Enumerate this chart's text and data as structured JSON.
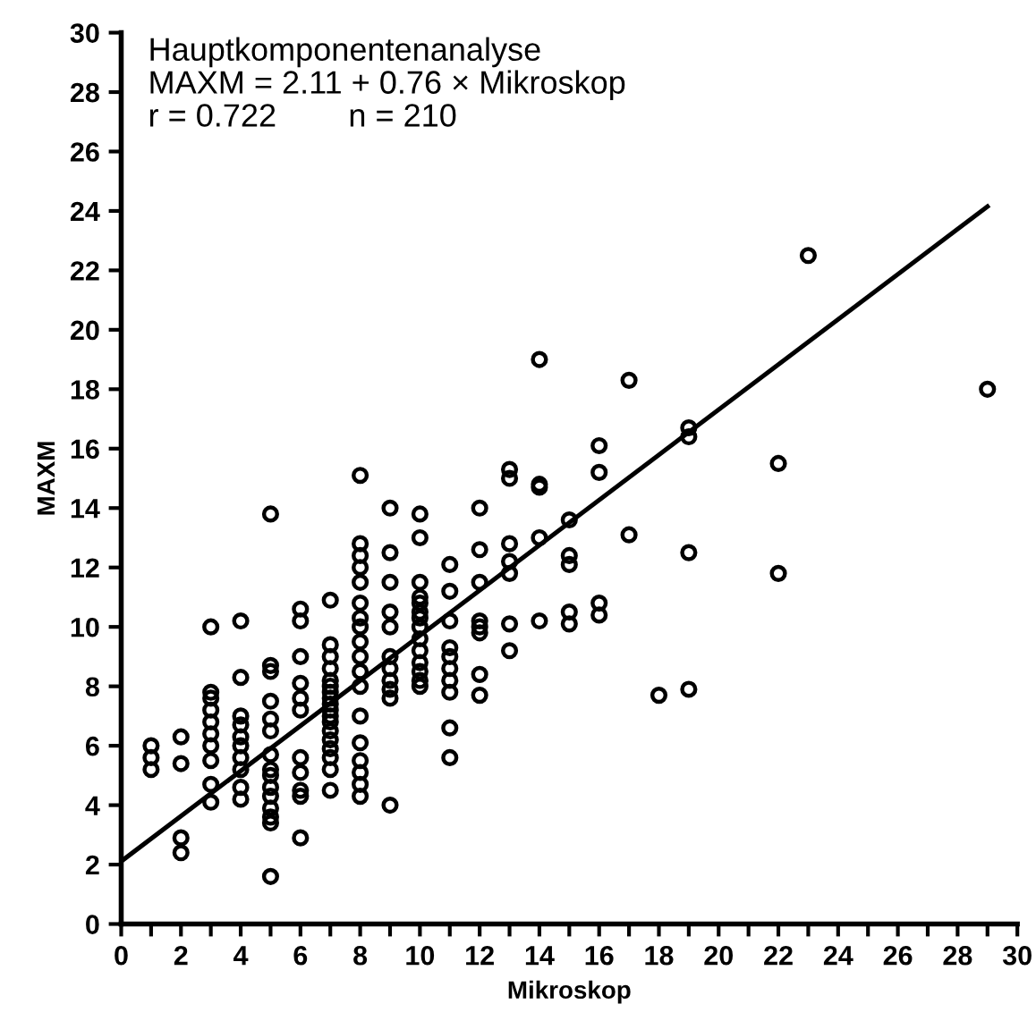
{
  "chart_data": {
    "type": "scatter",
    "xlabel": "Mikroskop",
    "ylabel": "MAXM",
    "annotations": [
      "Hauptkomponentenanalyse",
      "MAXM = 2.11 + 0.76 × Mikroskop",
      "r = 0.722        n = 210"
    ],
    "xlim": [
      0,
      30
    ],
    "ylim": [
      0,
      30
    ],
    "xticks": [
      0,
      {
        "value": 1,
        "label": null
      },
      2,
      {
        "value": 3,
        "label": null
      },
      4,
      {
        "value": 5,
        "label": null
      },
      6,
      {
        "value": 7,
        "label": null
      },
      8,
      {
        "value": 9,
        "label": null
      },
      10,
      {
        "value": 11,
        "label": null
      },
      12,
      {
        "value": 13,
        "label": null
      },
      14,
      {
        "value": 15,
        "label": null
      },
      16,
      {
        "value": 17,
        "label": null
      },
      18,
      {
        "value": 19,
        "label": null
      },
      20,
      {
        "value": 21,
        "label": null
      },
      22,
      {
        "value": 23,
        "label": null
      },
      24,
      {
        "value": 25,
        "label": null
      },
      26,
      {
        "value": 27,
        "label": null
      },
      28,
      {
        "value": 29,
        "label": null
      },
      30
    ],
    "yticks": [
      0,
      2,
      4,
      6,
      8,
      10,
      12,
      14,
      16,
      18,
      20,
      22,
      24,
      26,
      28,
      30
    ],
    "grid": false,
    "legend": false,
    "marker": "circle",
    "series": [
      {
        "color": "#000000",
        "x": [
          1,
          1,
          1,
          2,
          2,
          2,
          2,
          3,
          3,
          3,
          3,
          3,
          3,
          3,
          3,
          3,
          3,
          4,
          4,
          4,
          4,
          4,
          4,
          4,
          4,
          4,
          4,
          5,
          5,
          5,
          5,
          5,
          5,
          5,
          5,
          5,
          5,
          5,
          5,
          5,
          5,
          5,
          6,
          6,
          6,
          6,
          6,
          6,
          6,
          6,
          6,
          6,
          6,
          7,
          7,
          7,
          7,
          7,
          7,
          7,
          7,
          7,
          7,
          7,
          7,
          7,
          7,
          7,
          7,
          7,
          7,
          8,
          8,
          8,
          8,
          8,
          8,
          8,
          8,
          8,
          8,
          8,
          8,
          8,
          8,
          8,
          8,
          8,
          8,
          9,
          9,
          9,
          9,
          9,
          9,
          9,
          9,
          9,
          9,
          9,
          10,
          10,
          10,
          10,
          10,
          10,
          10,
          10,
          10,
          10,
          10,
          10,
          10,
          10,
          11,
          11,
          11,
          11,
          11,
          11,
          11,
          11,
          11,
          11,
          12,
          12,
          12,
          12,
          12,
          12,
          12,
          12,
          13,
          13,
          13,
          13,
          13,
          13,
          13,
          14,
          14,
          14,
          14,
          14,
          15,
          15,
          15,
          15,
          15,
          16,
          16,
          16,
          16,
          17,
          17,
          18,
          19,
          19,
          19,
          19,
          22,
          22,
          23,
          29
        ],
        "values": [
          6.0,
          5.6,
          5.2,
          6.3,
          5.4,
          2.9,
          2.4,
          10.0,
          7.8,
          7.6,
          7.2,
          6.8,
          6.4,
          6.0,
          5.5,
          4.7,
          4.1,
          10.2,
          8.3,
          7.0,
          6.7,
          6.3,
          6.0,
          5.6,
          5.2,
          4.6,
          4.2,
          13.8,
          8.7,
          8.5,
          7.5,
          6.9,
          6.5,
          5.7,
          5.2,
          5.0,
          4.6,
          4.3,
          3.9,
          3.6,
          3.4,
          1.6,
          10.6,
          10.2,
          9.0,
          8.1,
          7.6,
          7.2,
          5.6,
          5.1,
          4.5,
          4.3,
          2.9,
          10.9,
          9.4,
          9.0,
          8.6,
          8.2,
          8.0,
          7.8,
          7.6,
          7.4,
          7.2,
          7.0,
          6.8,
          6.5,
          6.2,
          5.9,
          5.6,
          5.2,
          4.5,
          15.1,
          12.8,
          12.4,
          12.0,
          11.5,
          10.8,
          10.3,
          10.0,
          9.5,
          9.0,
          8.5,
          8.0,
          7.0,
          6.1,
          5.5,
          5.1,
          4.7,
          4.3,
          14.0,
          12.5,
          11.5,
          10.5,
          10.0,
          9.0,
          8.6,
          8.2,
          7.9,
          7.6,
          4.0,
          13.8,
          13.0,
          11.5,
          11.0,
          10.8,
          10.5,
          10.3,
          10.0,
          9.6,
          9.2,
          8.8,
          8.5,
          8.2,
          8.0,
          12.1,
          11.2,
          10.2,
          9.3,
          9.0,
          8.6,
          8.2,
          7.8,
          6.6,
          5.6,
          14.0,
          12.6,
          11.5,
          10.2,
          10.0,
          9.8,
          8.4,
          7.7,
          15.3,
          15.0,
          12.8,
          12.2,
          11.8,
          10.1,
          9.2,
          19.0,
          14.8,
          14.7,
          13.0,
          10.2,
          13.6,
          12.4,
          12.1,
          10.5,
          10.1,
          16.1,
          15.2,
          10.8,
          10.4,
          18.3,
          13.1,
          7.7,
          16.7,
          16.4,
          12.5,
          7.9,
          15.5,
          11.8,
          22.5,
          18.0
        ]
      },
      {
        "type": "line",
        "color": "#000000",
        "marker": "none",
        "line_style": "solid",
        "x": [
          0,
          29
        ],
        "values": [
          2.11,
          24.15
        ]
      }
    ]
  }
}
